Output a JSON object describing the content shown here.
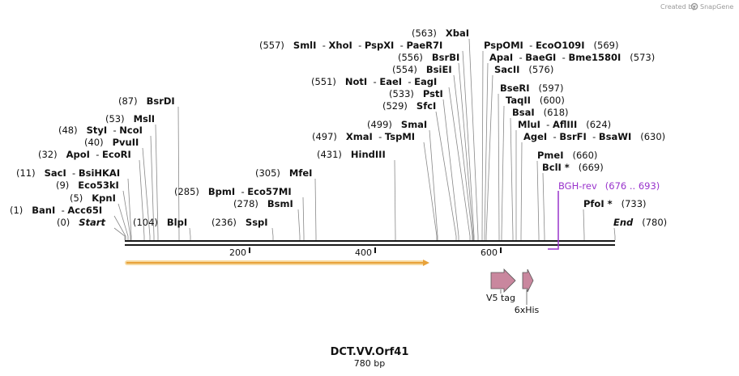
{
  "credit": {
    "created_by": "Created by",
    "brand": "SnapGene"
  },
  "map": {
    "title": "DCT.VV.Orf41",
    "length_label": "780 bp",
    "length_bp": 780,
    "ticks": [
      "200",
      "400",
      "600"
    ],
    "colors": {
      "backbone": "#1a1a1a",
      "feature_fill": "#c9879e",
      "orf": "#f0a830",
      "primer": "#9933cc",
      "text": "#111111"
    }
  },
  "sites": [
    {
      "group": "site-0",
      "pos": "(0)",
      "names": [
        "Start"
      ],
      "italic": true
    },
    {
      "group": "site-1",
      "pos": "(1)",
      "names": [
        "BanI",
        "Acc65I"
      ]
    },
    {
      "group": "site-5",
      "pos": "(5)",
      "names": [
        "KpnI"
      ]
    },
    {
      "group": "site-9",
      "pos": "(9)",
      "names": [
        "Eco53kI"
      ]
    },
    {
      "group": "site-11",
      "pos": "(11)",
      "names": [
        "SacI",
        "BsiHKAI"
      ]
    },
    {
      "group": "site-32",
      "pos": "(32)",
      "names": [
        "ApoI",
        "EcoRI"
      ]
    },
    {
      "group": "site-40",
      "pos": "(40)",
      "names": [
        "PvuII"
      ]
    },
    {
      "group": "site-48",
      "pos": "(48)",
      "names": [
        "StyI",
        "NcoI"
      ]
    },
    {
      "group": "site-53",
      "pos": "(53)",
      "names": [
        "MslI"
      ]
    },
    {
      "group": "site-87",
      "pos": "(87)",
      "names": [
        "BsrDI"
      ]
    },
    {
      "group": "site-104",
      "pos": "(104)",
      "names": [
        "BlpI"
      ]
    },
    {
      "group": "site-236",
      "pos": "(236)",
      "names": [
        "SspI"
      ]
    },
    {
      "group": "site-278",
      "pos": "(278)",
      "names": [
        "BsmI"
      ]
    },
    {
      "group": "site-285",
      "pos": "(285)",
      "names": [
        "BpmI",
        "Eco57MI"
      ]
    },
    {
      "group": "site-305",
      "pos": "(305)",
      "names": [
        "MfeI"
      ]
    },
    {
      "group": "site-431",
      "pos": "(431)",
      "names": [
        "HindIII"
      ]
    },
    {
      "group": "site-497",
      "pos": "(497)",
      "names": [
        "XmaI",
        "TspMI"
      ]
    },
    {
      "group": "site-499",
      "pos": "(499)",
      "names": [
        "SmaI"
      ]
    },
    {
      "group": "site-529",
      "pos": "(529)",
      "names": [
        "SfcI"
      ]
    },
    {
      "group": "site-533",
      "pos": "(533)",
      "names": [
        "PstI"
      ]
    },
    {
      "group": "site-551",
      "pos": "(551)",
      "names": [
        "NotI",
        "EaeI",
        "EagI"
      ]
    },
    {
      "group": "site-554",
      "pos": "(554)",
      "names": [
        "BsiEI"
      ]
    },
    {
      "group": "site-556",
      "pos": "(556)",
      "names": [
        "BsrBI"
      ]
    },
    {
      "group": "site-557",
      "pos": "(557)",
      "names": [
        "SmlI",
        "XhoI",
        "PspXI",
        "PaeR7I"
      ]
    },
    {
      "group": "site-563",
      "pos": "(563)",
      "names": [
        "XbaI"
      ]
    },
    {
      "group": "site-569",
      "pos": "(569)",
      "names": [
        "PspOMI",
        "EcoO109I"
      ]
    },
    {
      "group": "site-573",
      "pos": "(573)",
      "names": [
        "ApaI",
        "BaeGI",
        "Bme1580I"
      ]
    },
    {
      "group": "site-576",
      "pos": "(576)",
      "names": [
        "SacII"
      ]
    },
    {
      "group": "site-597",
      "pos": "(597)",
      "names": [
        "BseRI"
      ]
    },
    {
      "group": "site-600",
      "pos": "(600)",
      "names": [
        "TaqII"
      ]
    },
    {
      "group": "site-618",
      "pos": "(618)",
      "names": [
        "BsaI"
      ]
    },
    {
      "group": "site-624",
      "pos": "(624)",
      "names": [
        "MluI",
        "AflIII"
      ]
    },
    {
      "group": "site-630",
      "pos": "(630)",
      "names": [
        "AgeI",
        "BsrFI",
        "BsaWI"
      ]
    },
    {
      "group": "site-660",
      "pos": "(660)",
      "names": [
        "PmeI"
      ]
    },
    {
      "group": "site-669",
      "pos": "(669)",
      "names": [
        "BclI *"
      ]
    },
    {
      "group": "site-733",
      "pos": "(733)",
      "names": [
        "PfoI *"
      ]
    },
    {
      "group": "site-780",
      "pos": "(780)",
      "names": [
        "End"
      ],
      "italic": true
    }
  ],
  "primer": {
    "name": "BGH-rev",
    "range": "(676 .. 693)"
  },
  "features": [
    {
      "name": "V5 tag"
    },
    {
      "name": "6xHis"
    }
  ]
}
